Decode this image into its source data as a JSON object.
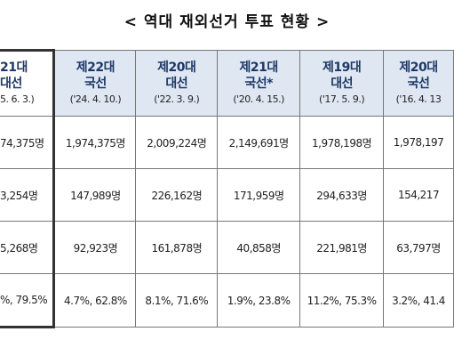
{
  "header": {
    "title": "< 역대 재외선거 투표 현황 >"
  },
  "table": {
    "columns": [
      [
        "21대",
        "대선",
        "5. 6. 3.)"
      ],
      [
        "제22대",
        "국선",
        "('24. 4. 10.)"
      ],
      [
        "제20대",
        "대선",
        "('22. 3. 9.)"
      ],
      [
        "제21대",
        "국선*",
        "('20. 4. 15.)"
      ],
      [
        "제19대",
        "대선",
        "('17. 5. 9.)"
      ],
      [
        "제20대",
        "국선",
        "('16. 4. 13"
      ]
    ],
    "rows": [
      [
        "74,375명",
        "1,974,375명",
        "2,009,224명",
        "2,149,691명",
        "1,978,198명",
        "1,978,197"
      ],
      [
        "3,254명",
        "147,989명",
        "226,162명",
        "171,959명",
        "294,633명",
        "154,217"
      ],
      [
        "5,268명",
        "92,923명",
        "161,878명",
        "40,858명",
        "221,981명",
        "63,797명"
      ],
      [
        "%, 79.5%",
        "4.7%, 62.8%",
        "8.1%, 71.6%",
        "1.9%, 23.8%",
        "11.2%, 75.3%",
        "3.2%, 41.4"
      ]
    ]
  }
}
